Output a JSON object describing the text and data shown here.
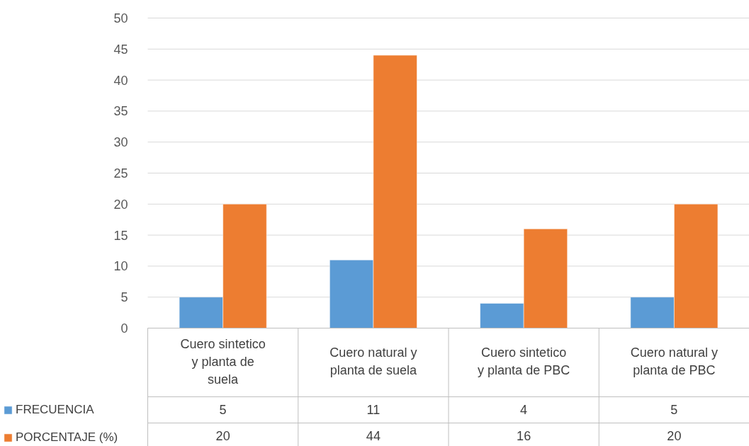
{
  "chart_data": {
    "type": "bar",
    "categories": [
      "Cuero sintetico y planta de suela",
      "Cuero natural y planta de suela",
      "Cuero sintetico y planta de PBC",
      "Cuero natural y planta de PBC"
    ],
    "series": [
      {
        "name": "FRECUENCIA",
        "color": "#5b9bd5",
        "values": [
          5,
          11,
          4,
          5
        ]
      },
      {
        "name": "PORCENTAJE (%)",
        "color": "#ed7d31",
        "values": [
          20,
          44,
          16,
          20
        ]
      }
    ],
    "ylim": [
      0,
      50
    ],
    "yticks": [
      0,
      5,
      10,
      15,
      20,
      25,
      30,
      35,
      40,
      45,
      50
    ],
    "grid": "y",
    "legend": "bottom left",
    "data_labels": true
  }
}
